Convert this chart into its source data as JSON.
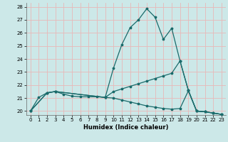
{
  "xlabel": "Humidex (Indice chaleur)",
  "xlim": [
    -0.5,
    23.5
  ],
  "ylim": [
    19.7,
    28.3
  ],
  "yticks": [
    20,
    21,
    22,
    23,
    24,
    25,
    26,
    27,
    28
  ],
  "xticks": [
    0,
    1,
    2,
    3,
    4,
    5,
    6,
    7,
    8,
    9,
    10,
    11,
    12,
    13,
    14,
    15,
    16,
    17,
    18,
    19,
    20,
    21,
    22,
    23
  ],
  "bg_color": "#cce8e8",
  "line_color": "#1a6b6b",
  "grid_color": "#e8b8b8",
  "line1_x": [
    0,
    1,
    2,
    3,
    4,
    5,
    6,
    7,
    8,
    9,
    10,
    11,
    12,
    13,
    14,
    15,
    16,
    17,
    18,
    19,
    20,
    21,
    22,
    23
  ],
  "line1_y": [
    20.0,
    21.05,
    21.4,
    21.5,
    21.3,
    21.15,
    21.1,
    21.1,
    21.1,
    21.05,
    23.3,
    25.1,
    26.4,
    27.0,
    27.85,
    27.2,
    25.5,
    26.35,
    23.85,
    21.6,
    20.0,
    19.95,
    19.85,
    19.75
  ],
  "line2_x": [
    0,
    2,
    3,
    9,
    10,
    11,
    12,
    13,
    14,
    15,
    16,
    17,
    18,
    19,
    20,
    21,
    22,
    23
  ],
  "line2_y": [
    20.0,
    21.4,
    21.5,
    21.05,
    21.5,
    21.7,
    21.9,
    22.1,
    22.3,
    22.5,
    22.7,
    22.9,
    23.85,
    21.6,
    20.0,
    19.95,
    19.85,
    19.75
  ],
  "line3_x": [
    0,
    2,
    3,
    9,
    10,
    11,
    12,
    13,
    14,
    15,
    16,
    17,
    18,
    19,
    20,
    21,
    22,
    23
  ],
  "line3_y": [
    20.0,
    21.4,
    21.5,
    21.05,
    21.0,
    20.85,
    20.7,
    20.55,
    20.4,
    20.3,
    20.2,
    20.15,
    20.2,
    21.55,
    20.0,
    19.95,
    19.85,
    19.75
  ]
}
